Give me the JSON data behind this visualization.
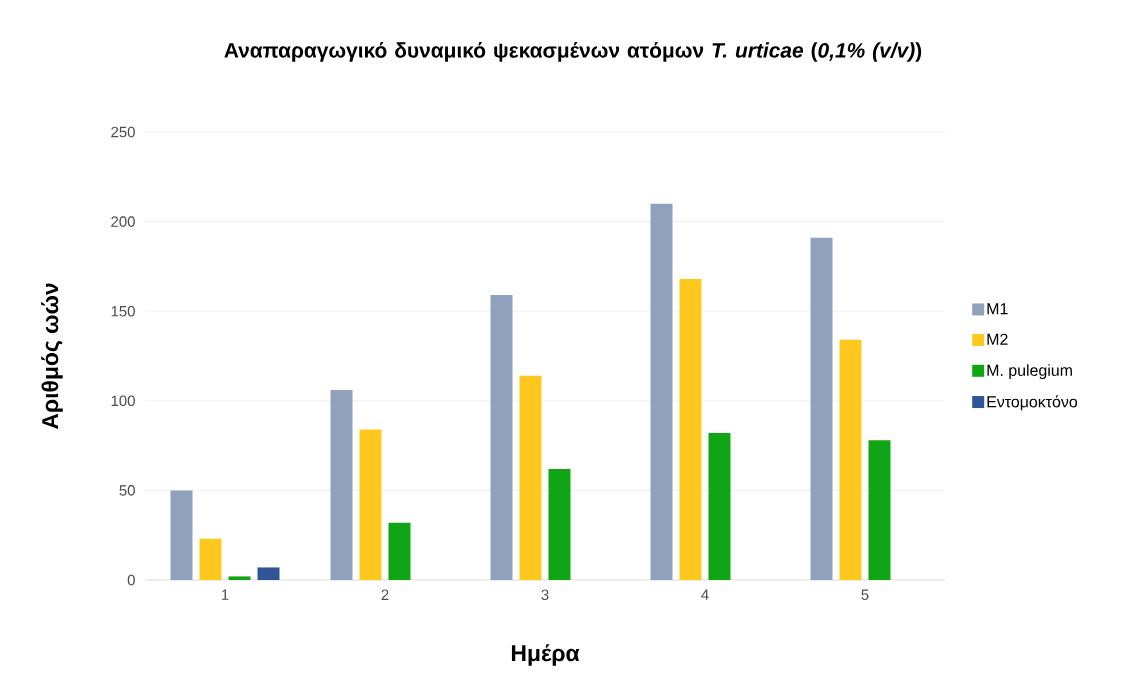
{
  "chart_data": {
    "type": "bar",
    "title": "Αναπαραγωγικό δυναμικό ψεκασμένων ατόμων *T. urticae* (*0,1% (v/v)*)",
    "xlabel": "Ημέρα",
    "ylabel": "Αριθμός ωών",
    "categories": [
      "1",
      "2",
      "3",
      "4",
      "5"
    ],
    "series": [
      {
        "name": "M1",
        "color": "#8fa1bc",
        "values": [
          50,
          106,
          159,
          210,
          191
        ]
      },
      {
        "name": "M2",
        "color": "#ffc81e",
        "values": [
          23,
          84,
          114,
          168,
          134
        ]
      },
      {
        "name": "M. pulegium",
        "color": "#10a514",
        "values": [
          2,
          32,
          62,
          82,
          78
        ]
      },
      {
        "name": "Εντομοκτόνο",
        "color": "#2f5597",
        "values": [
          7,
          0,
          0,
          0,
          0
        ]
      }
    ],
    "ylim": [
      0,
      250
    ],
    "yticks": [
      0,
      50,
      100,
      150,
      200,
      250
    ],
    "grid": "y",
    "legend": "right"
  }
}
